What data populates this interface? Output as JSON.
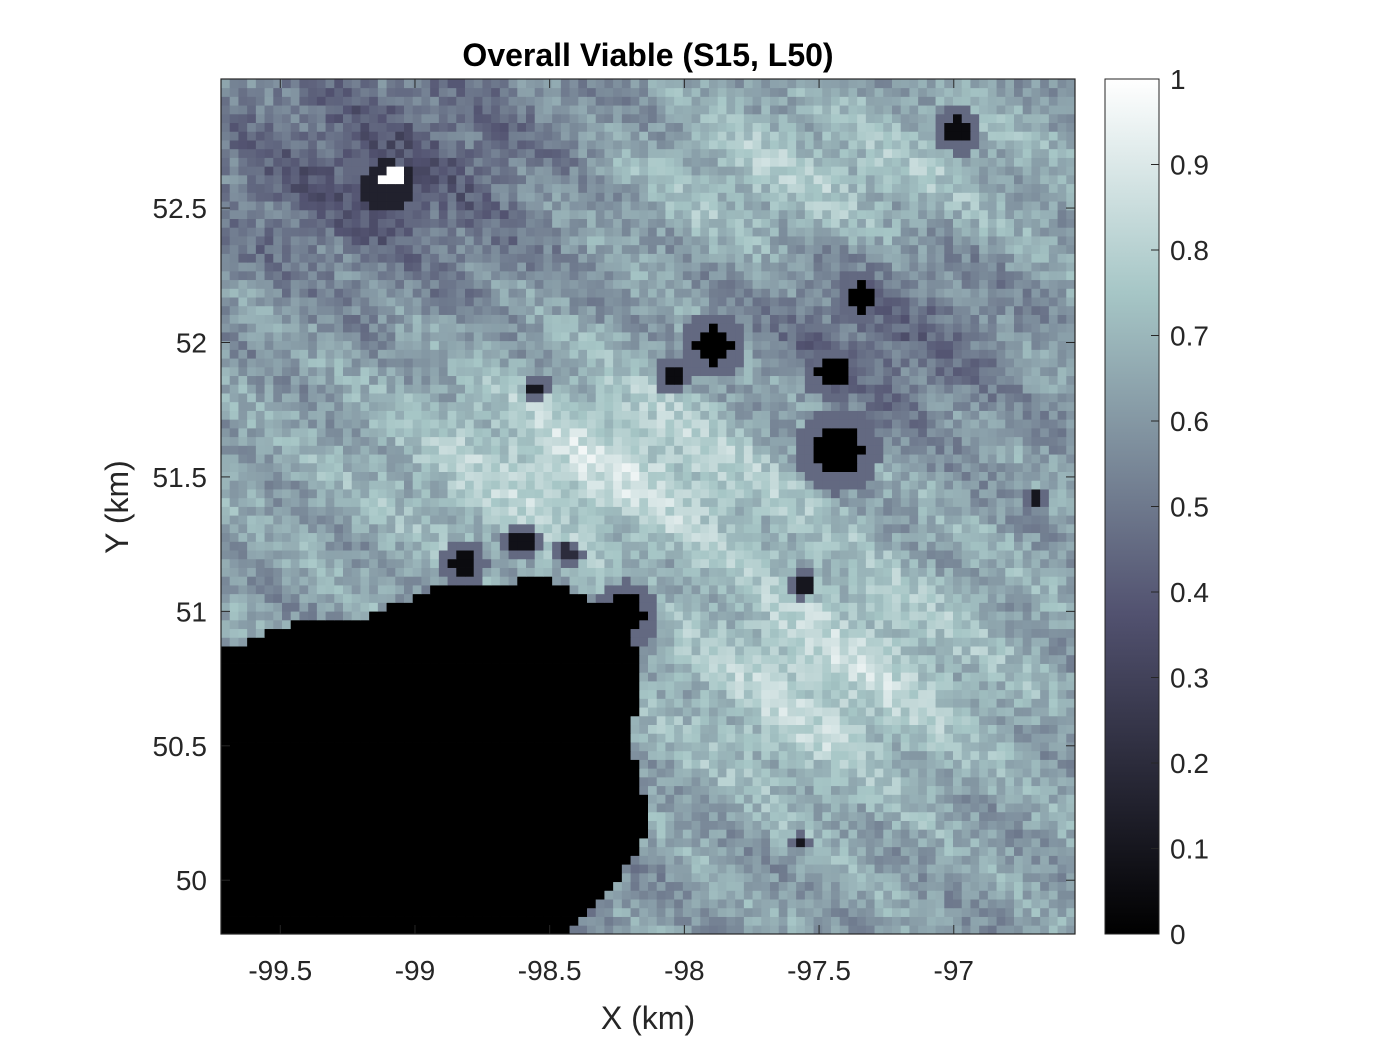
{
  "chart_data": {
    "type": "heatmap",
    "title": "Overall Viable (S15, L50)",
    "xlabel": "X (km)",
    "ylabel": "Y (km)",
    "xlim": [
      -99.72,
      -96.55
    ],
    "ylim": [
      49.8,
      52.98
    ],
    "xticks": [
      -99.5,
      -99,
      -98.5,
      -98,
      -97.5,
      -97
    ],
    "xtick_labels": [
      "-99.5",
      "-99",
      "-98.5",
      "-98",
      "-97.5",
      "-97"
    ],
    "yticks": [
      50,
      50.5,
      51,
      51.5,
      52,
      52.5
    ],
    "ytick_labels": [
      "50",
      "50.5",
      "51",
      "51.5",
      "52",
      "52.5"
    ],
    "colorbar": {
      "min": 0,
      "max": 1,
      "ticks": [
        0,
        0.1,
        0.2,
        0.3,
        0.4,
        0.5,
        0.6,
        0.7,
        0.8,
        0.9,
        1
      ],
      "tick_labels": [
        "0",
        "0.1",
        "0.2",
        "0.3",
        "0.4",
        "0.5",
        "0.6",
        "0.7",
        "0.8",
        "0.9",
        "1"
      ],
      "colormap": "bone"
    },
    "grid": false,
    "features": [
      {
        "kind": "low-region",
        "value": 0,
        "polygon": [
          [
            -99.72,
            49.8
          ],
          [
            -98.43,
            49.8
          ],
          [
            -98.3,
            49.93
          ],
          [
            -98.12,
            50.2
          ],
          [
            -98.2,
            50.5
          ],
          [
            -98.15,
            50.8
          ],
          [
            -98.25,
            51.0
          ],
          [
            -98.5,
            51.12
          ],
          [
            -98.9,
            51.1
          ],
          [
            -99.2,
            50.97
          ],
          [
            -99.5,
            50.95
          ],
          [
            -99.72,
            50.85
          ]
        ]
      },
      {
        "kind": "crater",
        "x": -97.43,
        "y": 51.6,
        "r": 0.09,
        "value": 0.0
      },
      {
        "kind": "crater",
        "x": -98.22,
        "y": 50.99,
        "r": 0.07,
        "value": 0.0
      },
      {
        "kind": "crater",
        "x": -97.89,
        "y": 51.99,
        "r": 0.07,
        "value": 0.0
      },
      {
        "kind": "crater",
        "x": -97.45,
        "y": 51.89,
        "r": 0.06,
        "value": 0.0
      },
      {
        "kind": "crater",
        "x": -97.34,
        "y": 52.17,
        "r": 0.05,
        "value": 0.0
      },
      {
        "kind": "crater",
        "x": -98.04,
        "y": 51.88,
        "r": 0.04,
        "value": 0.05
      },
      {
        "kind": "crater",
        "x": -98.82,
        "y": 51.18,
        "r": 0.05,
        "value": 0.05
      },
      {
        "kind": "crater",
        "x": -98.6,
        "y": 51.26,
        "r": 0.04,
        "value": 0.08
      },
      {
        "kind": "crater",
        "x": -98.55,
        "y": 51.83,
        "r": 0.03,
        "value": 0.1
      },
      {
        "kind": "crater",
        "x": -97.56,
        "y": 51.1,
        "r": 0.03,
        "value": 0.1
      },
      {
        "kind": "crater",
        "x": -96.98,
        "y": 52.79,
        "r": 0.05,
        "value": 0.05
      },
      {
        "kind": "crater",
        "x": -96.7,
        "y": 51.42,
        "r": 0.025,
        "value": 0.1
      },
      {
        "kind": "crater",
        "x": -97.57,
        "y": 50.15,
        "r": 0.02,
        "value": 0.1
      },
      {
        "kind": "crater",
        "x": -98.43,
        "y": 51.22,
        "r": 0.03,
        "value": 0.2
      },
      {
        "kind": "crater",
        "x": -99.1,
        "y": 52.58,
        "r": 0.1,
        "value": 0.15
      },
      {
        "kind": "bright-spot",
        "x": -99.08,
        "y": 52.62,
        "r": 0.045,
        "value": 1.0
      }
    ]
  }
}
